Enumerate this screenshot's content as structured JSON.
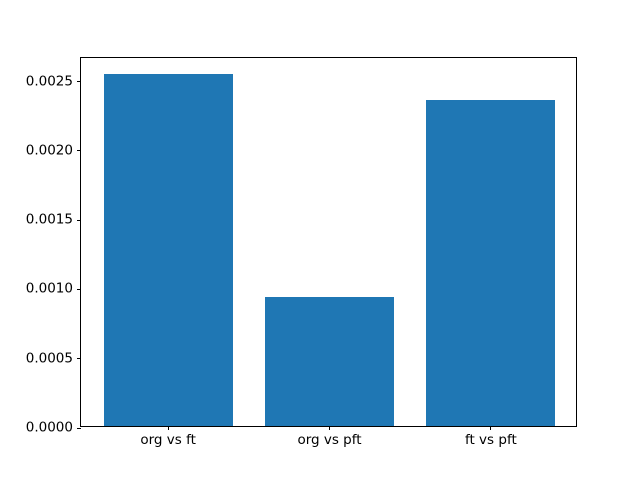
{
  "chart_data": {
    "type": "bar",
    "categories": [
      "org vs ft",
      "org vs pft",
      "ft vs pft"
    ],
    "values": [
      0.00254,
      0.00093,
      0.00235
    ],
    "title": "",
    "xlabel": "",
    "ylabel": "",
    "ylim": [
      0,
      0.00267
    ],
    "xlim": [
      -0.54,
      2.54
    ],
    "bar_positions": [
      0,
      1,
      2
    ],
    "bar_width": 0.8,
    "yticks": [
      0.0,
      0.0005,
      0.001,
      0.0015,
      0.002,
      0.0025
    ],
    "ytick_labels": [
      "0.0000",
      "0.0005",
      "0.0010",
      "0.0015",
      "0.0020",
      "0.0025"
    ],
    "grid": false,
    "legend": "none",
    "bar_color": "#1f77b4",
    "spine_color": "#000000",
    "background_color": "#ffffff"
  }
}
